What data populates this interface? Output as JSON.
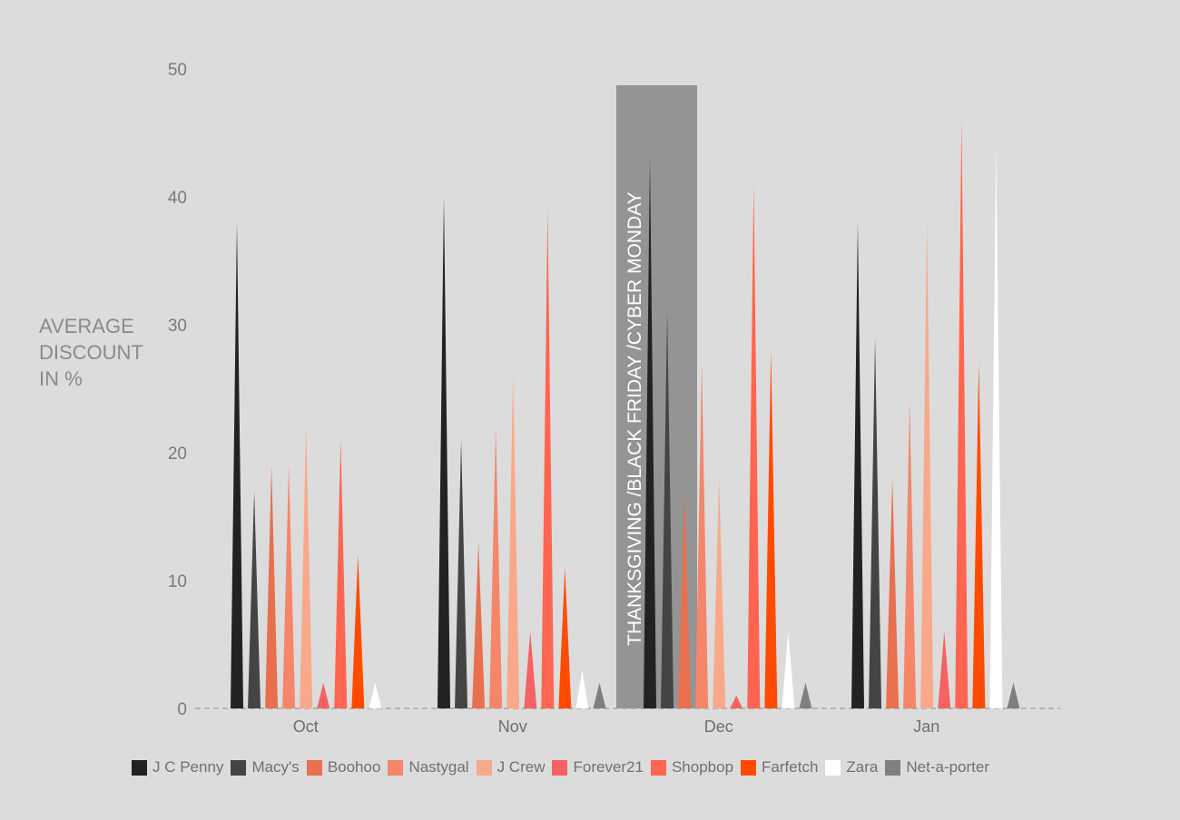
{
  "chart_data": {
    "type": "bar",
    "ylabel": [
      "AVERAGE",
      "DISCOUNT",
      "IN %"
    ],
    "ylim": [
      0,
      50
    ],
    "yticks": [
      0,
      10,
      20,
      30,
      40,
      50
    ],
    "categories": [
      "Oct",
      "Nov",
      "Dec",
      "Jan"
    ],
    "annotation": "THANKSGIVING /BLACK FRIDAY /CYBER MONDAY",
    "series": [
      {
        "name": "J C Penny",
        "color": "#222222",
        "values": [
          38,
          40,
          43,
          38
        ]
      },
      {
        "name": "Macy's",
        "color": "#444444",
        "values": [
          17,
          21,
          31,
          29
        ]
      },
      {
        "name": "Boohoo",
        "color": "#e8704f",
        "values": [
          19,
          13,
          17,
          18
        ]
      },
      {
        "name": "Nastygal",
        "color": "#f5866a",
        "values": [
          19,
          22,
          27,
          24
        ]
      },
      {
        "name": "J Crew",
        "color": "#f9a98a",
        "values": [
          22,
          26,
          18,
          38
        ]
      },
      {
        "name": "Forever21",
        "color": "#f56262",
        "values": [
          2,
          6,
          1,
          6
        ]
      },
      {
        "name": "Shopbop",
        "color": "#ff6550",
        "values": [
          21,
          39,
          41,
          46
        ]
      },
      {
        "name": "Farfetch",
        "color": "#ff4b00",
        "values": [
          12,
          11,
          28,
          27
        ]
      },
      {
        "name": "Zara",
        "color": "#ffffff",
        "values": [
          2,
          3,
          6,
          44
        ]
      },
      {
        "name": "Net-a-porter",
        "color": "#7f7f7f",
        "values": [
          0,
          2,
          2,
          2
        ]
      }
    ],
    "grid": false,
    "legend": "bottom"
  }
}
